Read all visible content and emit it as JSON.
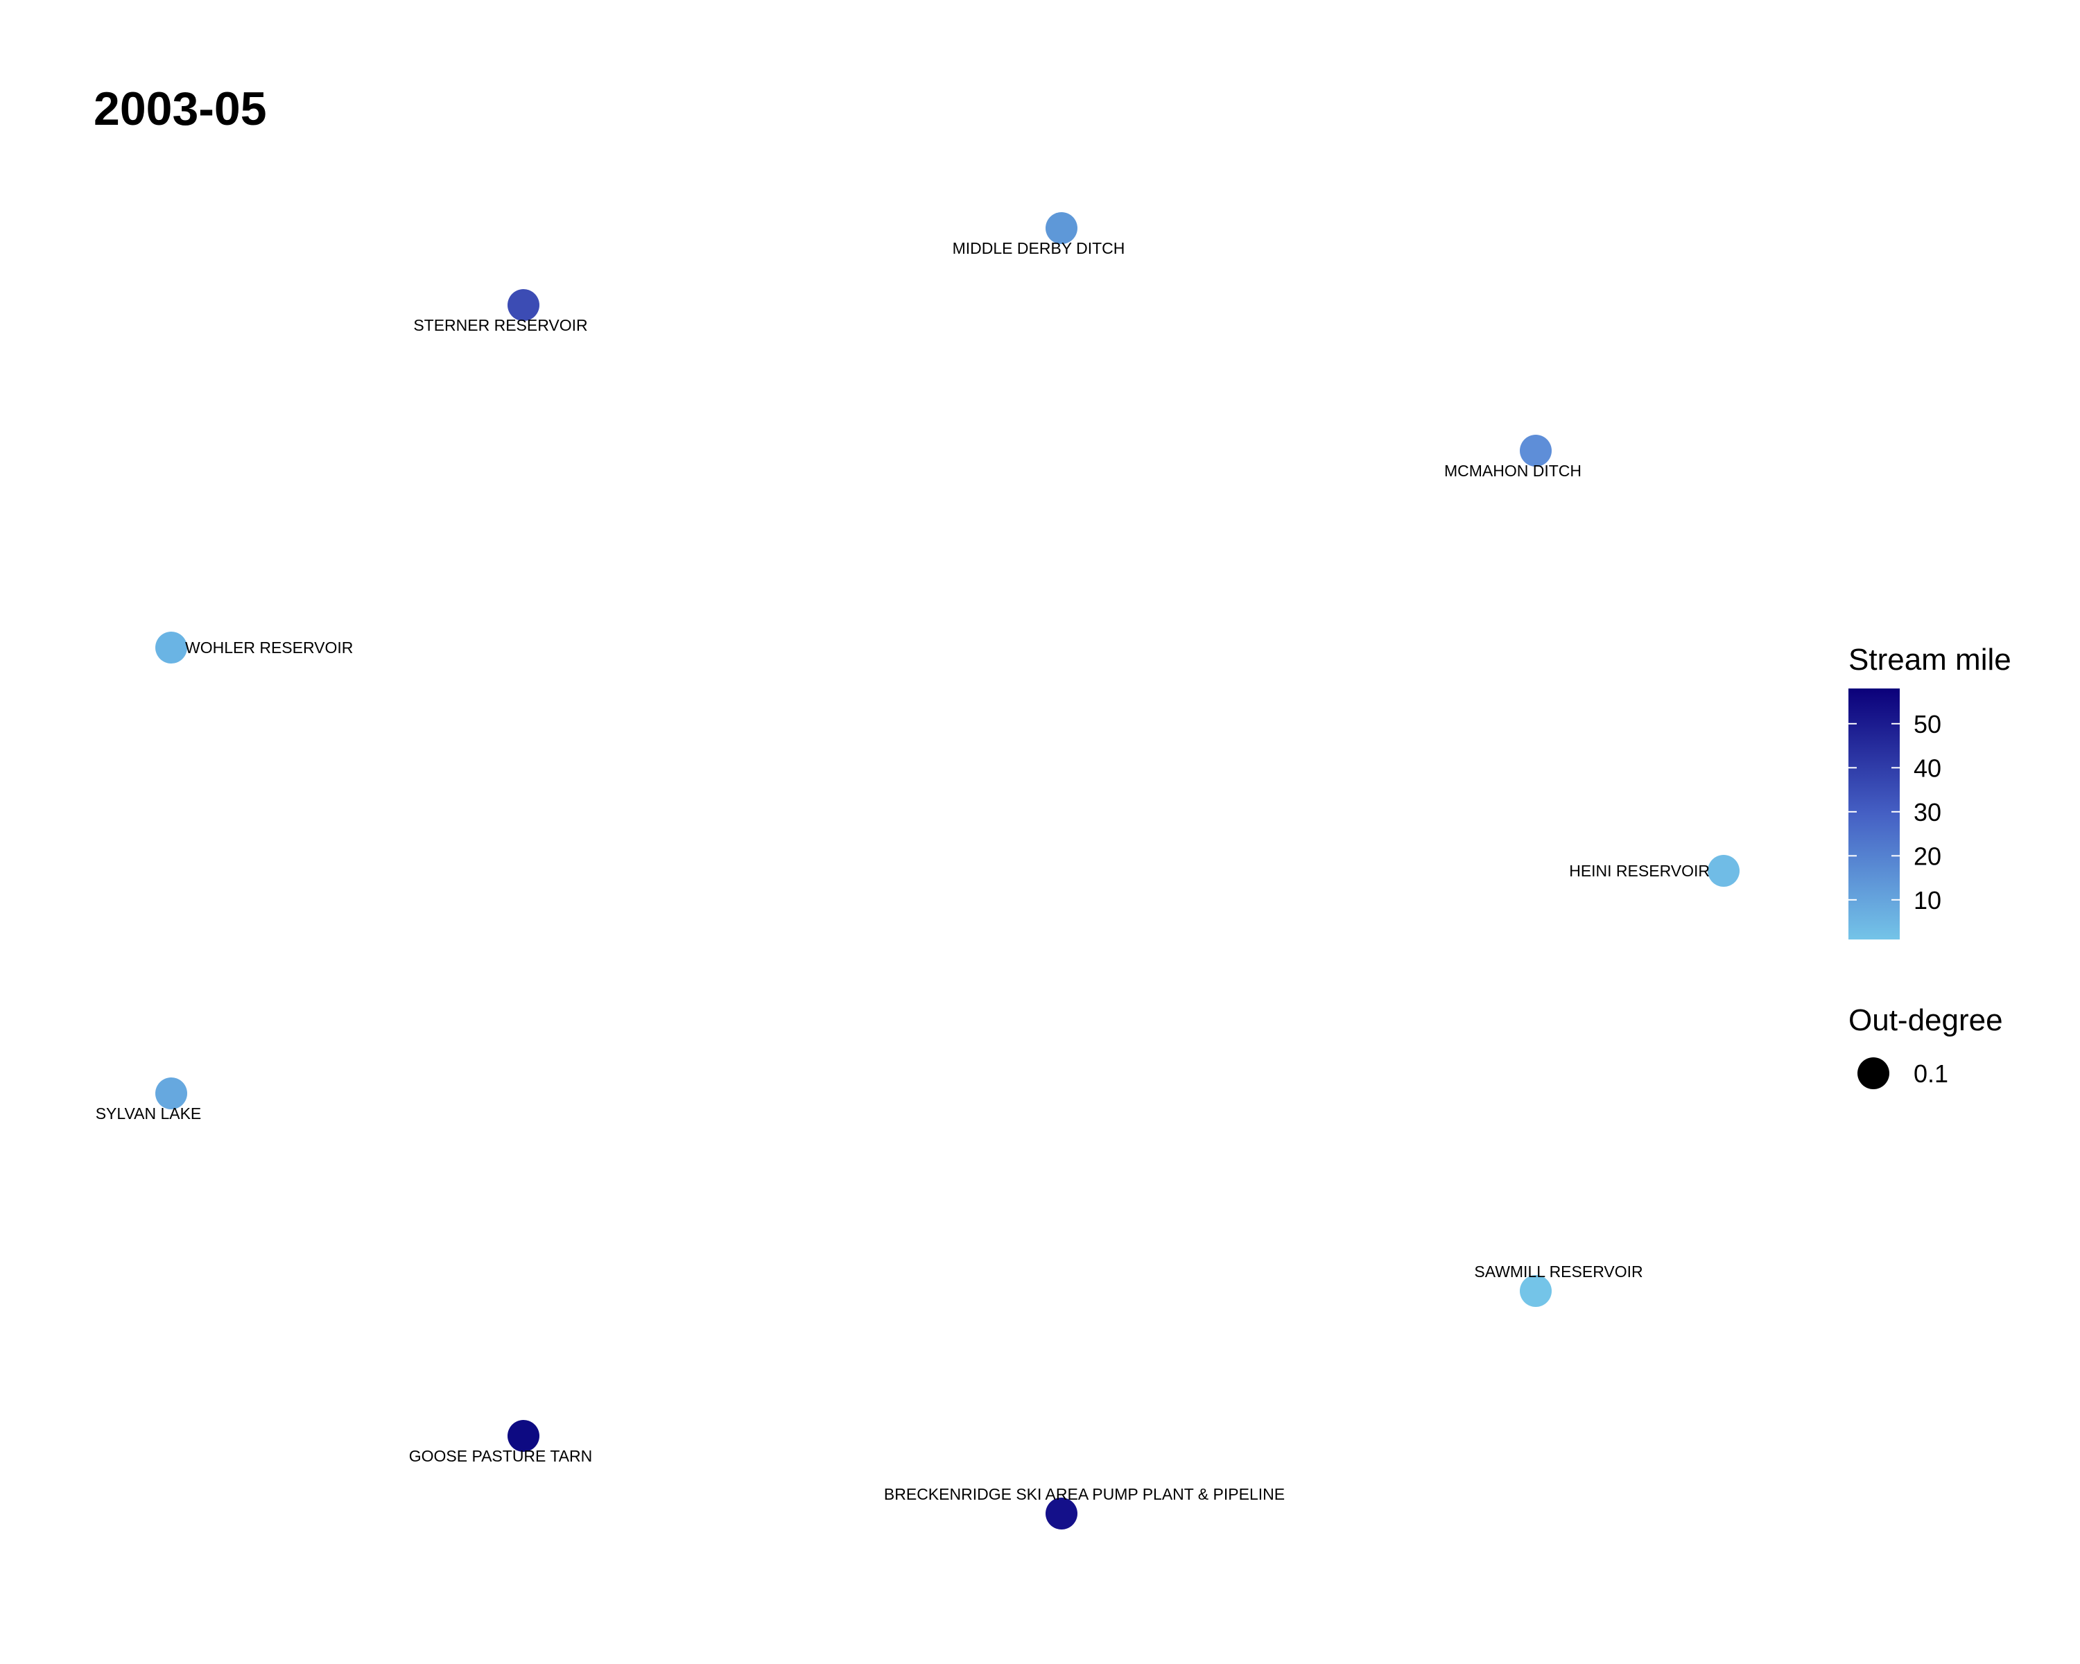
{
  "title": "2003-05",
  "legend": {
    "color_title": "Stream mile",
    "color_ticks": [
      "10",
      "20",
      "30",
      "40",
      "50"
    ],
    "color_tick_values": [
      10,
      20,
      30,
      40,
      50
    ],
    "color_range": [
      1,
      58
    ],
    "color_low": "#74c4e8",
    "color_high": "#0b007a",
    "size_title": "Out-degree",
    "size_entry": "0.1"
  },
  "nodes": [
    {
      "label": "MIDDLE DERBY DITCH",
      "color": "#5e98d8",
      "label_pos": "below"
    },
    {
      "label": "STERNER RESERVOIR",
      "color": "#3c4cb4",
      "label_pos": "below"
    },
    {
      "label": "MCMAHON DITCH",
      "color": "#5e8ed8",
      "label_pos": "below"
    },
    {
      "label": "WOHLER RESERVOIR",
      "color": "#6ab4e4",
      "label_pos": "right"
    },
    {
      "label": "HEINI RESERVOIR",
      "color": "#70bce6",
      "label_pos": "left"
    },
    {
      "label": "SYLVAN LAKE",
      "color": "#66a8df",
      "label_pos": "below"
    },
    {
      "label": "SAWMILL RESERVOIR",
      "color": "#74c4e8",
      "label_pos": "above"
    },
    {
      "label": "GOOSE PASTURE TARN",
      "color": "#0d0a82",
      "label_pos": "below"
    },
    {
      "label": "BRECKENRIDGE SKI AREA PUMP PLANT & PIPELINE",
      "color": "#14108a",
      "label_pos": "above"
    }
  ]
}
